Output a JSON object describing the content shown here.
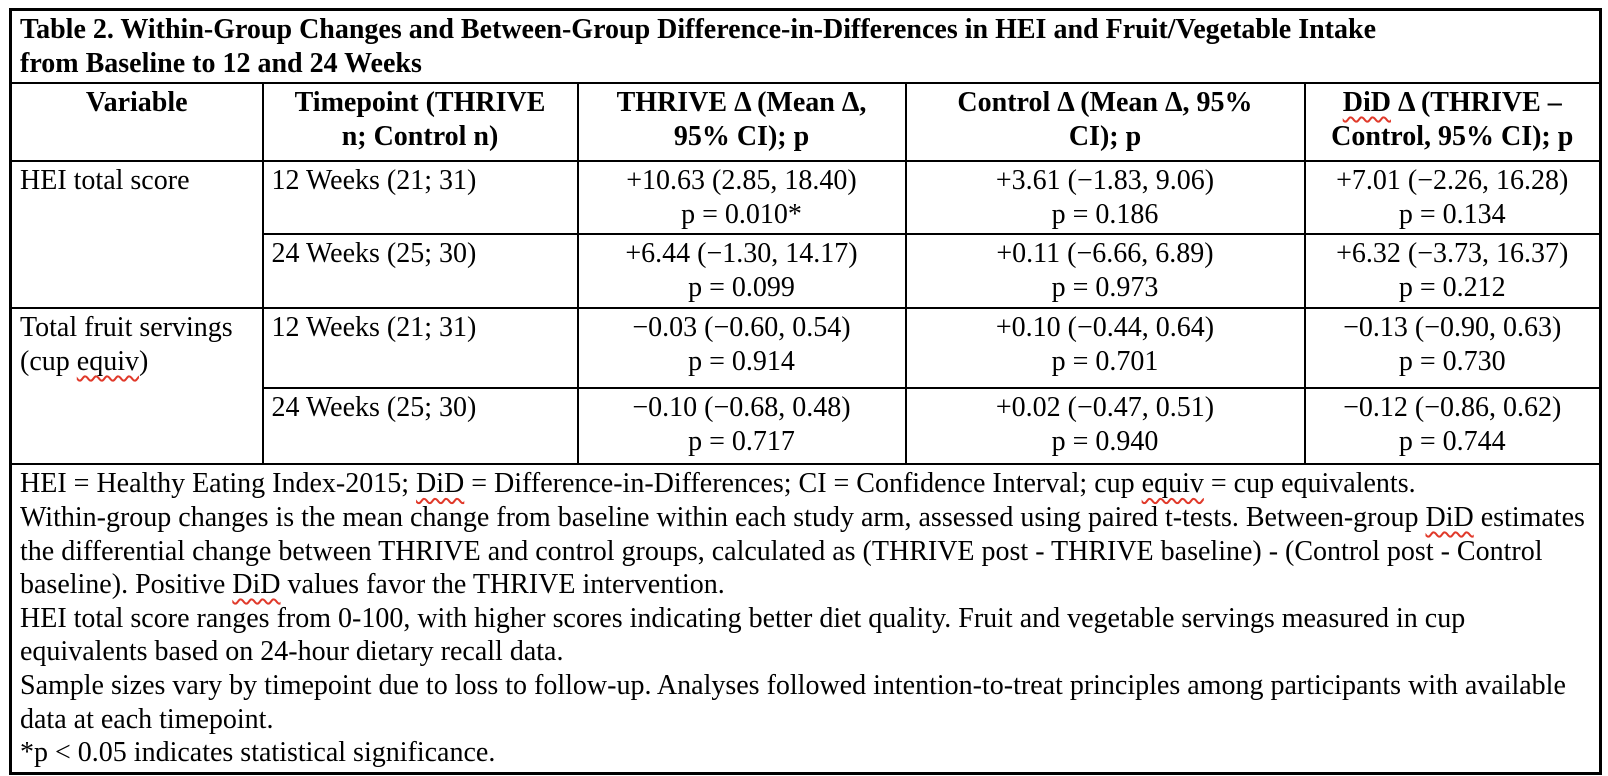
{
  "colors": {
    "text": "#000000",
    "border": "#000000",
    "background": "#ffffff",
    "spellcheck_squiggle": "#e0392a"
  },
  "table": {
    "title_line1": "Table 2. Within-Group Changes and Between-Group Difference-in-Differences in HEI and Fruit/Vegetable Intake",
    "title_line2": "from Baseline to 12 and 24 Weeks",
    "headers": {
      "variable": "Variable",
      "timepoint_line1": "Timepoint (THRIVE",
      "timepoint_line2": "n; Control n)",
      "thrive_line1": "THRIVE Δ (Mean Δ,",
      "thrive_line2": "95% CI); p",
      "control_line1": "Control Δ (Mean Δ, 95%",
      "control_line2": "CI); p",
      "did_line1_segments": [
        {
          "t": "DiD",
          "sq": true
        },
        {
          "t": " Δ (THRIVE –"
        }
      ],
      "did_line2": "Control, 95% CI); p"
    },
    "rows": [
      {
        "variable": "HEI total score",
        "timepoints": [
          {
            "label": "12 Weeks (21; 31)",
            "thrive": {
              "est": "+10.63 (2.85, 18.40)",
              "p": "p = 0.010*"
            },
            "control": {
              "est": "+3.61 (−1.83, 9.06)",
              "p": "p = 0.186"
            },
            "did": {
              "est": "+7.01 (−2.26, 16.28)",
              "p": "p = 0.134"
            }
          },
          {
            "label": "24 Weeks (25; 30)",
            "thrive": {
              "est": "+6.44 (−1.30, 14.17)",
              "p": "p = 0.099"
            },
            "control": {
              "est": "+0.11 (−6.66, 6.89)",
              "p": "p = 0.973"
            },
            "did": {
              "est": "+6.32 (−3.73, 16.37)",
              "p": "p = 0.212"
            }
          }
        ]
      },
      {
        "variable_line1": "Total fruit servings",
        "variable_line2_segments": [
          {
            "t": "(cup "
          },
          {
            "t": "equiv",
            "sq": true
          },
          {
            "t": ")"
          }
        ],
        "timepoints": [
          {
            "label": "12 Weeks (21; 31)",
            "thrive": {
              "est": "−0.03 (−0.60, 0.54)",
              "p": "p = 0.914"
            },
            "control": {
              "est": "+0.10 (−0.44, 0.64)",
              "p": "p = 0.701"
            },
            "did": {
              "est": "−0.13 (−0.90, 0.63)",
              "p": "p = 0.730"
            }
          },
          {
            "label": "24 Weeks (25; 30)",
            "thrive": {
              "est": "−0.10 (−0.68, 0.48)",
              "p": "p = 0.717"
            },
            "control": {
              "est": "+0.02 (−0.47, 0.51)",
              "p": "p = 0.940"
            },
            "did": {
              "est": "−0.12 (−0.86, 0.62)",
              "p": "p = 0.744"
            }
          }
        ]
      }
    ],
    "footnotes": {
      "abbreviations_segments": [
        {
          "t": "HEI = Healthy Eating Index-2015; "
        },
        {
          "t": "DiD",
          "sq": true
        },
        {
          "t": " = Difference-in-Differences; CI = Confidence Interval; cup "
        },
        {
          "t": "equiv",
          "sq": true
        },
        {
          "t": " = cup equivalents."
        }
      ],
      "methods_segments": [
        {
          "t": "Within-group changes is the mean change from baseline within each study arm, assessed using paired t-tests. Between-group "
        },
        {
          "t": "DiD",
          "sq": true
        },
        {
          "t": " estimates the differential change between THRIVE and control groups, calculated as (THRIVE post - THRIVE baseline) - (Control post - Control baseline). Positive "
        },
        {
          "t": "DiD",
          "sq": true
        },
        {
          "t": " values favor the THRIVE intervention."
        }
      ],
      "scales": "HEI total score ranges from 0-100, with higher scores indicating better diet quality. Fruit and vegetable servings measured in cup equivalents based on 24-hour dietary recall data.",
      "sample_sizes": "Sample sizes vary by timepoint due to loss to follow-up. Analyses followed intention-to-treat principles among participants with available data at each timepoint.",
      "significance": "*p < 0.05 indicates statistical significance."
    }
  }
}
